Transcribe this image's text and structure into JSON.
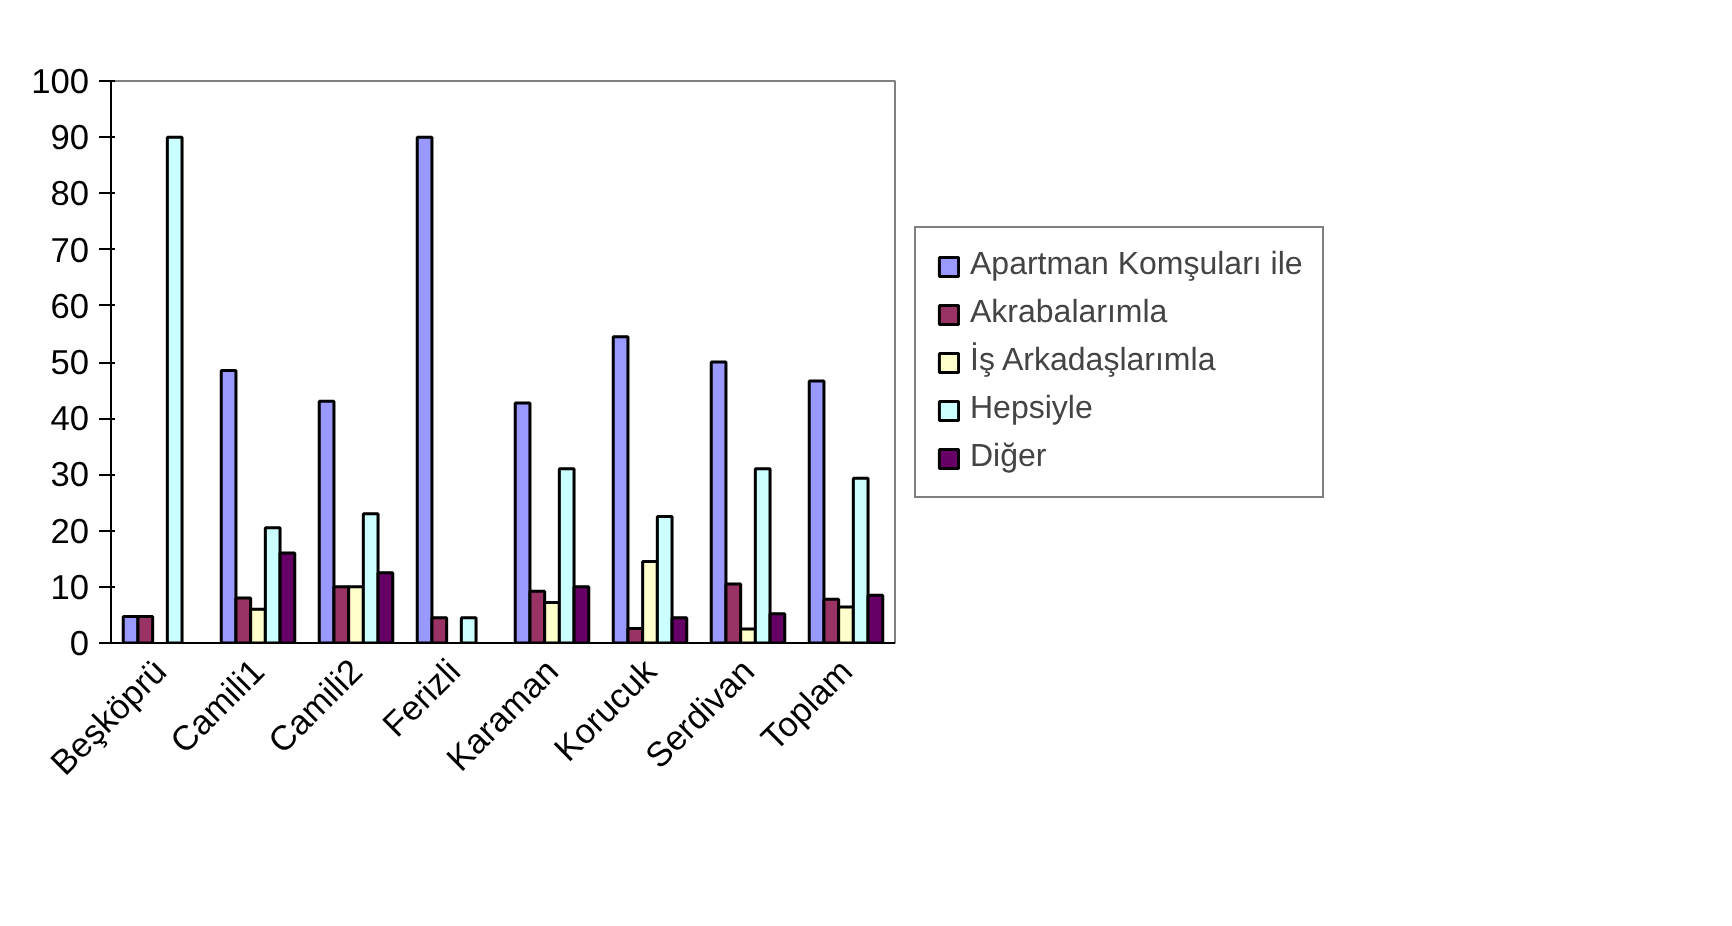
{
  "chart_data": {
    "type": "bar",
    "categories": [
      "Beşköprü",
      "Camili1",
      "Camili2",
      "Ferizli",
      "Karaman",
      "Korucuk",
      "Serdivan",
      "Toplam"
    ],
    "series": [
      {
        "name": "Apartman Komşuları ile",
        "color": "#9999ff",
        "values": [
          4.7,
          48.5,
          43,
          90,
          42.7,
          54.5,
          50,
          46.6
        ]
      },
      {
        "name": "Akrabalarımla",
        "color": "#993366",
        "values": [
          4.7,
          8,
          10,
          4.5,
          9.2,
          2.6,
          10.5,
          7.8
        ]
      },
      {
        "name": "İş Arkadaşlarımla",
        "color": "#ffffcc",
        "values": [
          null,
          6,
          10,
          null,
          7.2,
          14.5,
          2.5,
          6.4
        ]
      },
      {
        "name": "Hepsiyle",
        "color": "#ccffff",
        "values": [
          90,
          20.5,
          23,
          4.5,
          31,
          22.5,
          31,
          29.3
        ]
      },
      {
        "name": "Diğer",
        "color": "#660066",
        "values": [
          null,
          16,
          12.5,
          null,
          10,
          4.5,
          5.2,
          8.5
        ]
      }
    ],
    "ylim": [
      0,
      100
    ],
    "yticks": [
      0,
      10,
      20,
      30,
      40,
      50,
      60,
      70,
      80,
      90,
      100
    ],
    "grid": false,
    "legend": "right"
  }
}
